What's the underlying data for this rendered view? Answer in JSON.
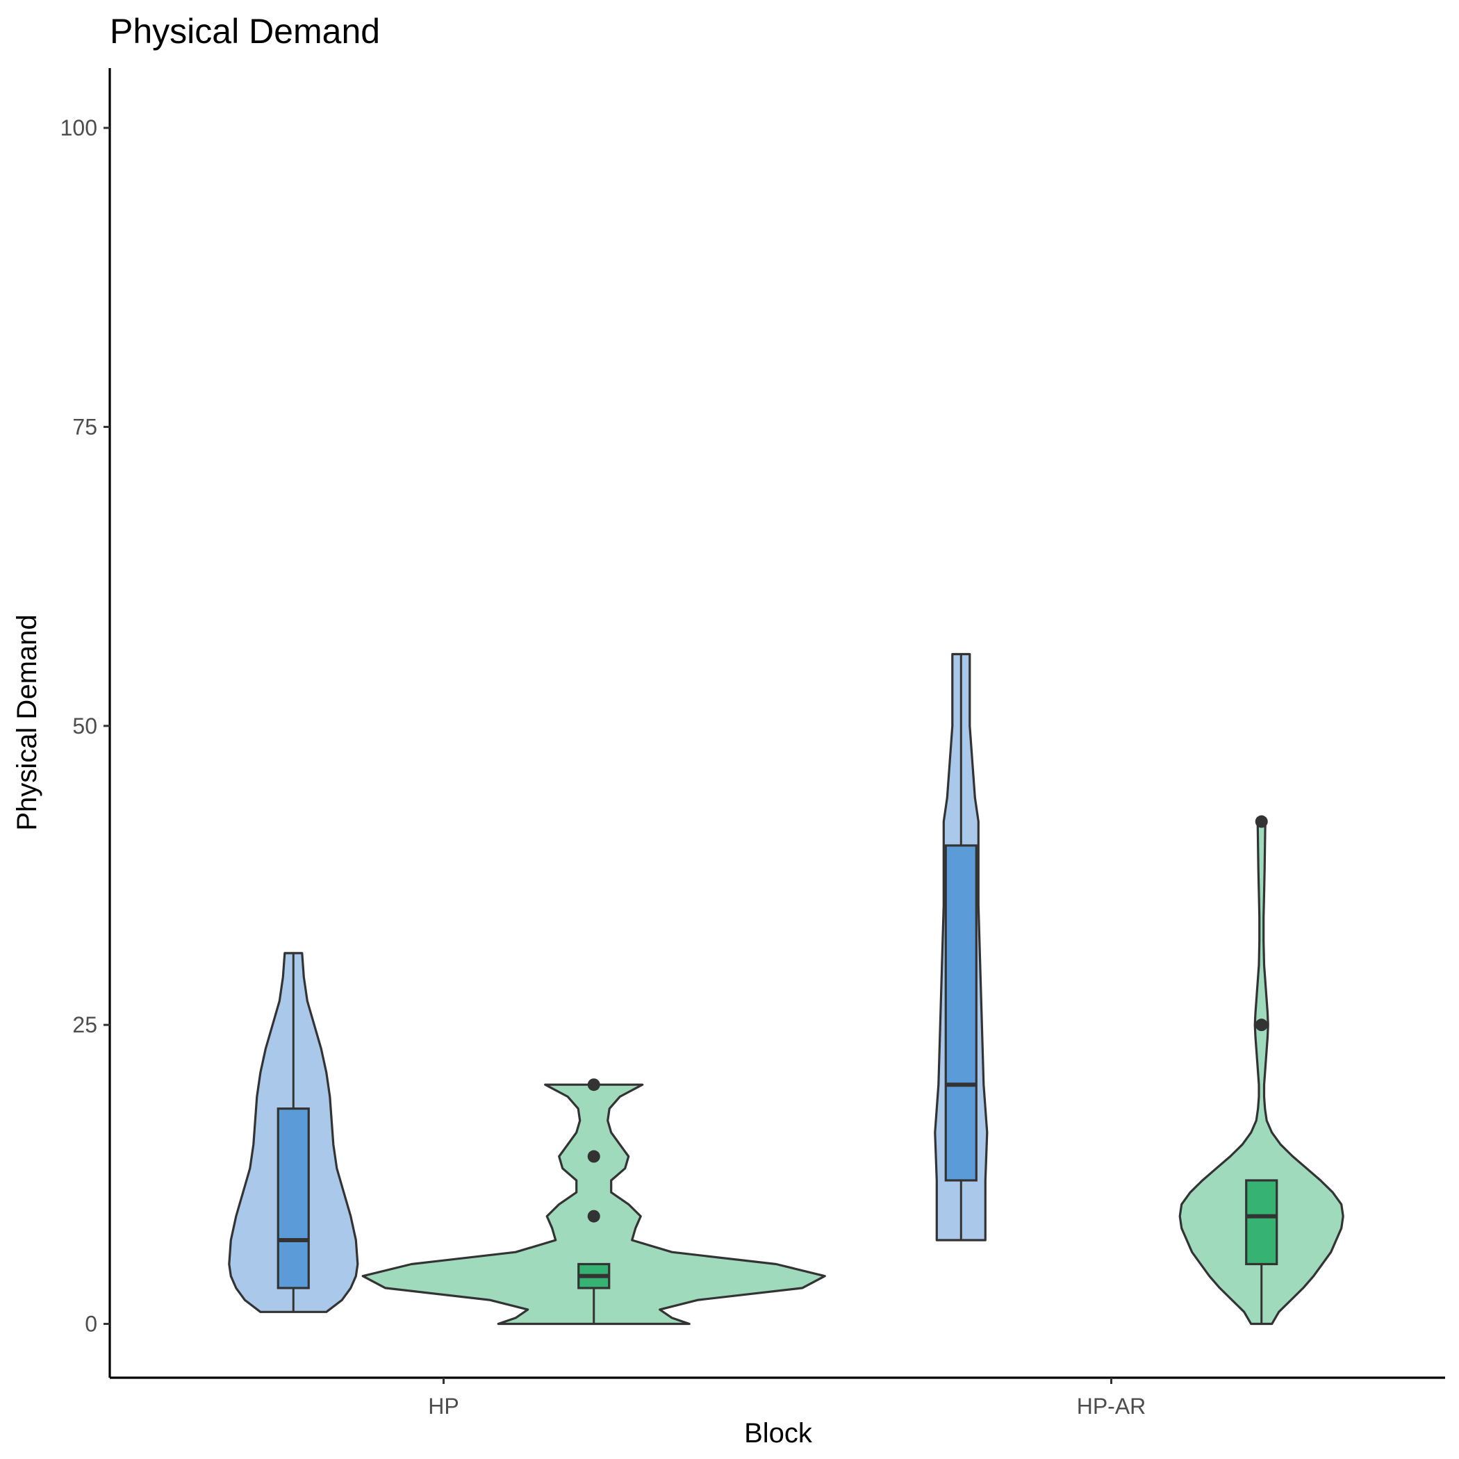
{
  "chart_data": {
    "type": "violin",
    "title": "Physical Demand",
    "xlabel": "Block",
    "ylabel": "Physical Demand",
    "categories": [
      "HP",
      "HP-AR"
    ],
    "ylim": [
      -4.5,
      105
    ],
    "yticks": [
      0,
      25,
      50,
      75,
      100
    ],
    "grid": false,
    "legend": "none",
    "series": [
      {
        "color_fill": "#aac9ea",
        "box_color": "#5b9bd8",
        "groups": [
          {
            "category": "HP",
            "box": {
              "q1": 3,
              "median": 7,
              "q3": 18,
              "whisker_low": 1,
              "whisker_high": 31
            },
            "outliers": [],
            "density": [
              [
                1,
                0.19
              ],
              [
                2,
                0.28
              ],
              [
                3,
                0.33
              ],
              [
                4,
                0.36
              ],
              [
                5,
                0.37
              ],
              [
                7,
                0.36
              ],
              [
                9,
                0.33
              ],
              [
                11,
                0.29
              ],
              [
                13,
                0.25
              ],
              [
                15,
                0.23
              ],
              [
                17,
                0.22
              ],
              [
                19,
                0.21
              ],
              [
                21,
                0.19
              ],
              [
                23,
                0.16
              ],
              [
                25,
                0.12
              ],
              [
                27,
                0.08
              ],
              [
                29,
                0.06
              ],
              [
                31,
                0.05
              ]
            ]
          },
          {
            "category": "HP-AR",
            "box": {
              "q1": 12,
              "median": 20,
              "q3": 40,
              "whisker_low": 7,
              "whisker_high": 56
            },
            "outliers": [],
            "density": [
              [
                7,
                0.14
              ],
              [
                12,
                0.14
              ],
              [
                16,
                0.15
              ],
              [
                20,
                0.13
              ],
              [
                25,
                0.12
              ],
              [
                30,
                0.11
              ],
              [
                35,
                0.1
              ],
              [
                40,
                0.1
              ],
              [
                42,
                0.1
              ],
              [
                44,
                0.08
              ],
              [
                46,
                0.07
              ],
              [
                48,
                0.06
              ],
              [
                50,
                0.05
              ],
              [
                52,
                0.05
              ],
              [
                54,
                0.05
              ],
              [
                56,
                0.05
              ]
            ]
          }
        ]
      },
      {
        "color_fill": "#9fdabc",
        "box_color": "#36b372",
        "groups": [
          {
            "category": "HP",
            "box": {
              "q1": 3,
              "median": 4,
              "q3": 5,
              "whisker_low": 0,
              "whisker_high": 5
            },
            "outliers": [
              9,
              14,
              20
            ],
            "density": [
              [
                0,
                0.55
              ],
              [
                0.5,
                0.45
              ],
              [
                1.2,
                0.38
              ],
              [
                2,
                0.6
              ],
              [
                3,
                1.2
              ],
              [
                4,
                1.33
              ],
              [
                5,
                1.05
              ],
              [
                6,
                0.45
              ],
              [
                7,
                0.22
              ],
              [
                8,
                0.24
              ],
              [
                9,
                0.27
              ],
              [
                10,
                0.2
              ],
              [
                11,
                0.1
              ],
              [
                12,
                0.1
              ],
              [
                13,
                0.18
              ],
              [
                14,
                0.2
              ],
              [
                15,
                0.15
              ],
              [
                16,
                0.1
              ],
              [
                17,
                0.08
              ],
              [
                18,
                0.09
              ],
              [
                19,
                0.15
              ],
              [
                20,
                0.28
              ]
            ]
          },
          {
            "category": "HP-AR",
            "box": {
              "q1": 5,
              "median": 9,
              "q3": 12,
              "whisker_low": 0,
              "whisker_high": 12
            },
            "outliers": [
              25,
              42
            ],
            "density": [
              [
                0,
                0.06
              ],
              [
                1,
                0.1
              ],
              [
                2,
                0.17
              ],
              [
                3,
                0.24
              ],
              [
                4,
                0.3
              ],
              [
                5,
                0.35
              ],
              [
                6,
                0.4
              ],
              [
                7,
                0.43
              ],
              [
                8,
                0.46
              ],
              [
                9,
                0.47
              ],
              [
                10,
                0.46
              ],
              [
                11,
                0.41
              ],
              [
                12,
                0.34
              ],
              [
                13,
                0.26
              ],
              [
                14,
                0.18
              ],
              [
                15,
                0.11
              ],
              [
                16,
                0.06
              ],
              [
                17,
                0.03
              ],
              [
                18,
                0.02
              ],
              [
                19,
                0.015
              ],
              [
                20,
                0.015
              ],
              [
                22,
                0.025
              ],
              [
                24,
                0.035
              ],
              [
                25,
                0.038
              ],
              [
                26,
                0.035
              ],
              [
                28,
                0.025
              ],
              [
                30,
                0.015
              ],
              [
                32,
                0.012
              ],
              [
                34,
                0.012
              ],
              [
                36,
                0.015
              ],
              [
                38,
                0.018
              ],
              [
                40,
                0.02
              ],
              [
                42,
                0.022
              ]
            ]
          }
        ]
      }
    ]
  }
}
